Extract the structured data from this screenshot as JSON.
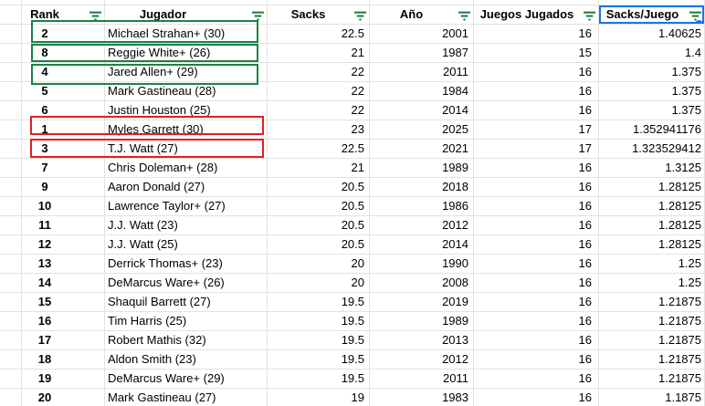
{
  "table": {
    "columns": [
      {
        "key": "rank",
        "label": "Rank"
      },
      {
        "key": "jugador",
        "label": "Jugador"
      },
      {
        "key": "sacks",
        "label": "Sacks"
      },
      {
        "key": "ano",
        "label": "Año"
      },
      {
        "key": "juegos_jugados",
        "label": "Juegos Jugados"
      },
      {
        "key": "sacks_juego",
        "label": "Sacks/Juego"
      }
    ],
    "rows": [
      [
        "2",
        "Michael Strahan+ (30)",
        "22.5",
        "2001",
        "16",
        "1.40625"
      ],
      [
        "8",
        "Reggie White+ (26)",
        "21",
        "1987",
        "15",
        "1.4"
      ],
      [
        "4",
        "Jared Allen+ (29)",
        "22",
        "2011",
        "16",
        "1.375"
      ],
      [
        "5",
        "Mark Gastineau (28)",
        "22",
        "1984",
        "16",
        "1.375"
      ],
      [
        "6",
        "Justin Houston (25)",
        "22",
        "2014",
        "16",
        "1.375"
      ],
      [
        "1",
        "Myles Garrett (30)",
        "23",
        "2025",
        "17",
        "1.352941176"
      ],
      [
        "3",
        "T.J. Watt (27)",
        "22.5",
        "2021",
        "17",
        "1.323529412"
      ],
      [
        "7",
        "Chris Doleman+ (28)",
        "21",
        "1989",
        "16",
        "1.3125"
      ],
      [
        "9",
        "Aaron Donald (27)",
        "20.5",
        "2018",
        "16",
        "1.28125"
      ],
      [
        "10",
        "Lawrence Taylor+ (27)",
        "20.5",
        "1986",
        "16",
        "1.28125"
      ],
      [
        "11",
        "J.J. Watt (23)",
        "20.5",
        "2012",
        "16",
        "1.28125"
      ],
      [
        "12",
        "J.J. Watt (25)",
        "20.5",
        "2014",
        "16",
        "1.28125"
      ],
      [
        "13",
        "Derrick Thomas+ (23)",
        "20",
        "1990",
        "16",
        "1.25"
      ],
      [
        "14",
        "DeMarcus Ware+ (26)",
        "20",
        "2008",
        "16",
        "1.25"
      ],
      [
        "15",
        "Shaquil Barrett (27)",
        "19.5",
        "2019",
        "16",
        "1.21875"
      ],
      [
        "16",
        "Tim Harris (25)",
        "19.5",
        "1989",
        "16",
        "1.21875"
      ],
      [
        "17",
        "Robert Mathis (32)",
        "19.5",
        "2013",
        "16",
        "1.21875"
      ],
      [
        "18",
        "Aldon Smith (23)",
        "19.5",
        "2012",
        "16",
        "1.21875"
      ],
      [
        "19",
        "DeMarcus Ware+ (29)",
        "19.5",
        "2011",
        "16",
        "1.21875"
      ],
      [
        "20",
        "Mark Gastineau (27)",
        "19",
        "1983",
        "16",
        "1.1875"
      ]
    ],
    "highlights": {
      "green_row_indexes": [
        0,
        1,
        2
      ],
      "red_row_indexes": [
        5,
        6
      ]
    },
    "selected_header_label": "Sacks/Juego",
    "selected_header_index": 5,
    "icons": {
      "header_filter": "filter-icon"
    }
  },
  "colors": {
    "highlight_green": "#1a8248",
    "highlight_red": "#e02020",
    "filter_icon_green": "#188038",
    "selection_blue": "#1a73e8",
    "gridline": "#e2e2e2"
  }
}
